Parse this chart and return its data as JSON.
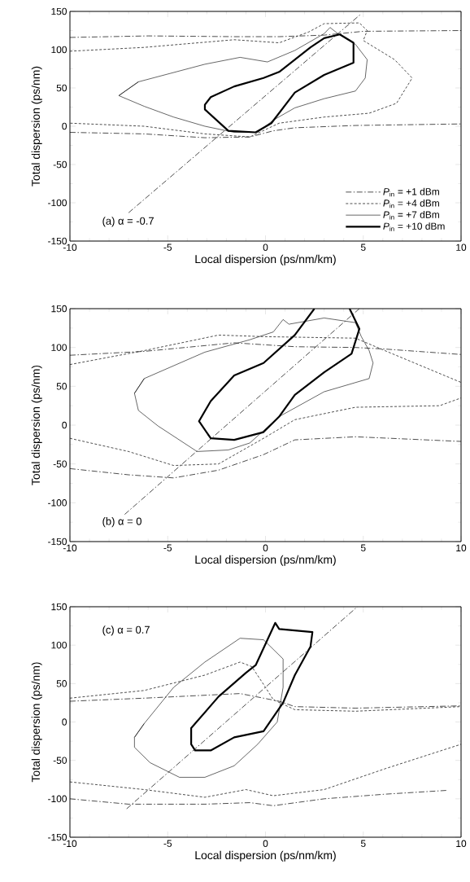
{
  "chart_data": [
    {
      "type": "line",
      "xlabel": "Local dispersion (ps/nm/km)",
      "ylabel": "Total dispersion (ps/nm)",
      "xlim": [
        -10,
        10
      ],
      "ylim": [
        -150,
        150
      ],
      "xticks": [
        -10,
        -5,
        0,
        5,
        10
      ],
      "yticks": [
        -150,
        -100,
        -50,
        0,
        50,
        100,
        150
      ],
      "legend": "bottom right",
      "annotations": [
        "(a) α = -0.7"
      ],
      "series": [
        {
          "name": "*P*$_{in}$ = +1 dBm",
          "color": "#000000",
          "line_style": "dashdot",
          "x": [
            -10,
            -6,
            -1.6,
            0.7,
            3,
            5,
            10
          ],
          "values": [
            116,
            118,
            117,
            117,
            119,
            124,
            125
          ]
        },
        {
          "name": "*P*$_{in}$ = +4 dBm",
          "color": "#000000",
          "line_style": "dashed",
          "x": [
            -10,
            -6.2,
            -1.6,
            0.7,
            2.2,
            3.0,
            4.8,
            5.2,
            5.0,
            6.6,
            7.5,
            6.7,
            5.3,
            3.0,
            0.7,
            -0.8,
            -3.1,
            -6.2,
            -10
          ],
          "values": [
            98,
            103,
            113,
            109,
            123,
            134,
            135,
            125,
            112,
            87,
            63,
            30,
            17,
            12,
            4,
            -14,
            -10,
            0,
            4
          ]
        },
        {
          "name": "*P*$_{in}$ = +7 dBm",
          "color": "#000000",
          "line_style": "solid",
          "x": [
            -7.5,
            -6.5,
            -3.1,
            -1.3,
            0.1,
            1.5,
            3.0,
            3.3,
            3.7,
            4.6,
            5.2,
            5.1,
            4.6,
            3.0,
            1.5,
            0.4,
            -0.4,
            -1.6,
            -3.1,
            -4.7,
            -6.2,
            -7.5,
            -6.5
          ],
          "values": [
            40,
            58,
            81,
            90,
            84,
            99,
            121,
            129,
            121,
            107,
            87,
            63,
            46,
            36,
            24,
            8,
            -8,
            -8,
            0,
            12,
            26,
            40,
            58
          ]
        },
        {
          "name": "*P*$_{in}$ = +10 dBm",
          "color": "#000000",
          "line_style": "solid",
          "x": [
            -3.1,
            -2.8,
            -1.6,
            -0.1,
            0.7,
            2.3,
            3.0,
            3.8,
            4.5,
            4.5,
            3.0,
            1.5,
            0.9,
            0.3,
            -0.5,
            -1.9,
            -3.1,
            -3.1,
            -2.8
          ],
          "values": [
            28,
            38,
            52,
            63,
            71,
            103,
            115,
            120,
            109,
            83,
            67,
            44,
            24,
            4,
            -8,
            -6,
            22,
            28,
            38
          ]
        },
        {
          "color": "#000000",
          "line_style": "dashdot",
          "x": [
            -10,
            -6.2,
            -3.1,
            -0.8,
            0.4,
            1.5,
            4.6,
            10
          ],
          "values": [
            -8,
            -10,
            -15,
            -14,
            -6,
            -2,
            1,
            3
          ]
        },
        {
          "color": "#000000",
          "line_style": "dashdot",
          "x": [
            -7,
            4.9
          ],
          "values": [
            -113,
            147
          ]
        }
      ]
    },
    {
      "type": "line",
      "xlabel": "Local dispersion (ps/nm/km)",
      "ylabel": "Total dispersion (ps/nm)",
      "xlim": [
        -10,
        10
      ],
      "ylim": [
        -150,
        150
      ],
      "xticks": [
        -10,
        -5,
        0,
        5,
        10
      ],
      "yticks": [
        -150,
        -100,
        -50,
        0,
        50,
        100,
        150
      ],
      "annotations": [
        "(b) α = 0"
      ],
      "series": [
        {
          "color": "#000000",
          "line_style": "dashdot",
          "x": [
            -10,
            -6.2,
            -1.6,
            1.5,
            4.6,
            6.1,
            10
          ],
          "values": [
            90,
            95,
            106,
            101,
            100,
            98,
            91
          ]
        },
        {
          "color": "#000000",
          "line_style": "dashdot",
          "x": [
            -10,
            -7,
            -4.7,
            -2.4,
            -0.1,
            1.5,
            4.6,
            10
          ],
          "values": [
            -56,
            -64,
            -68,
            -58,
            -38,
            -19,
            -15,
            -21
          ]
        },
        {
          "color": "#000000",
          "line_style": "dashed",
          "x": [
            -10,
            -6.2,
            -2.4,
            -0.1,
            4.6,
            6.1,
            10
          ],
          "values": [
            78,
            96,
            116,
            114,
            112,
            96,
            55
          ]
        },
        {
          "color": "#000000",
          "line_style": "dashed",
          "x": [
            -10,
            -7,
            -4.7,
            -2.4,
            -0.1,
            1.5,
            4.6,
            8.9,
            10
          ],
          "values": [
            -17,
            -34,
            -52,
            -50,
            -17,
            7,
            23,
            25,
            35
          ]
        },
        {
          "color": "#000000",
          "line_style": "solid",
          "x": [
            -6.7,
            -6.2,
            -3.1,
            -0.8,
            0.4,
            0.9,
            1.2,
            3.0,
            4.6,
            4.9,
            5.3,
            5.5,
            5.3,
            3.0,
            0.7,
            -0.8,
            -1.9,
            -3.5,
            -5.5,
            -6.5,
            -6.7,
            -6.2
          ],
          "values": [
            41,
            60,
            94,
            110,
            120,
            136,
            130,
            138,
            132,
            114,
            96,
            80,
            60,
            43,
            11,
            -23,
            -32,
            -34,
            -1,
            19,
            41,
            60
          ]
        },
        {
          "color": "#000000",
          "line_style": "solid",
          "x": [
            2.5,
            1.5,
            -0.1,
            -1.6,
            -2.8,
            -3.4,
            -2.8,
            -1.6,
            -0.1,
            0.7,
            1.5,
            3.0,
            4.4,
            4.8,
            4.3
          ],
          "values": [
            150,
            116,
            80,
            64,
            31,
            5,
            -17,
            -19,
            -9,
            11,
            39,
            68,
            92,
            124,
            150
          ]
        },
        {
          "color": "#000000",
          "line_style": "dashdot",
          "x": [
            -7.2,
            4.8
          ],
          "values": [
            -115,
            150
          ]
        }
      ]
    },
    {
      "type": "line",
      "xlabel": "Local dispersion (ps/nm/km)",
      "ylabel": "Total dispersion (ps/nm)",
      "xlim": [
        -10,
        10
      ],
      "ylim": [
        -150,
        150
      ],
      "xticks": [
        -10,
        -5,
        0,
        5,
        10
      ],
      "yticks": [
        -150,
        -100,
        -50,
        0,
        50,
        100,
        150
      ],
      "annotations": [
        "(c) α = 0.7"
      ],
      "series": [
        {
          "color": "#000000",
          "line_style": "dashdot",
          "x": [
            -10,
            -6.2,
            -1.3,
            0.7,
            1.5,
            4.6,
            10
          ],
          "values": [
            27,
            31,
            37,
            27,
            20,
            18,
            21
          ]
        },
        {
          "color": "#000000",
          "line_style": "dashdot",
          "x": [
            -10,
            -7,
            -3.1,
            -0.8,
            0.4,
            3.0,
            6.1,
            9.3
          ],
          "values": [
            -100,
            -107,
            -107,
            -105,
            -109,
            -100,
            -94,
            -89
          ]
        },
        {
          "color": "#000000",
          "line_style": "dashed",
          "x": [
            -10,
            -6.2,
            -3.1,
            -1.3,
            -0.7,
            -0.1,
            0.4,
            1.5,
            4.6,
            10
          ],
          "values": [
            31,
            41,
            61,
            78,
            72,
            49,
            29,
            16,
            14,
            20
          ]
        },
        {
          "color": "#000000",
          "line_style": "dashed",
          "x": [
            -10,
            -6.2,
            -3.1,
            -1,
            0.4,
            3.0,
            6.1,
            10
          ],
          "values": [
            -78,
            -88,
            -98,
            -88,
            -96,
            -88,
            -61,
            -29
          ]
        },
        {
          "color": "#000000",
          "line_style": "solid",
          "x": [
            -6.7,
            -6.2,
            -4.7,
            -3.1,
            -1.3,
            -0.1,
            0.9,
            0.9,
            0.6,
            -0.4,
            -1.6,
            -3.1,
            -4.4,
            -5.9,
            -6.7,
            -6.7,
            -6.2
          ],
          "values": [
            -20,
            -2,
            45,
            78,
            109,
            107,
            82,
            45,
            0,
            -29,
            -57,
            -72,
            -72,
            -53,
            -33,
            -20,
            -2
          ]
        },
        {
          "color": "#000000",
          "line_style": "solid",
          "x": [
            -3.8,
            -3.8,
            -2.4,
            -1,
            -0.5,
            0.5,
            0.7,
            2.4,
            2.3,
            1.5,
            0.9,
            -0.1,
            -1.6,
            -2.8,
            -3.6,
            -3.8,
            -3.8
          ],
          "values": [
            -29,
            -8,
            33,
            64,
            74,
            129,
            121,
            117,
            98,
            61,
            25,
            -12,
            -20,
            -37,
            -37,
            -29,
            -8
          ]
        },
        {
          "color": "#000000",
          "line_style": "dashdot",
          "x": [
            -7.1,
            4.7
          ],
          "values": [
            -113,
            150
          ]
        }
      ]
    }
  ]
}
